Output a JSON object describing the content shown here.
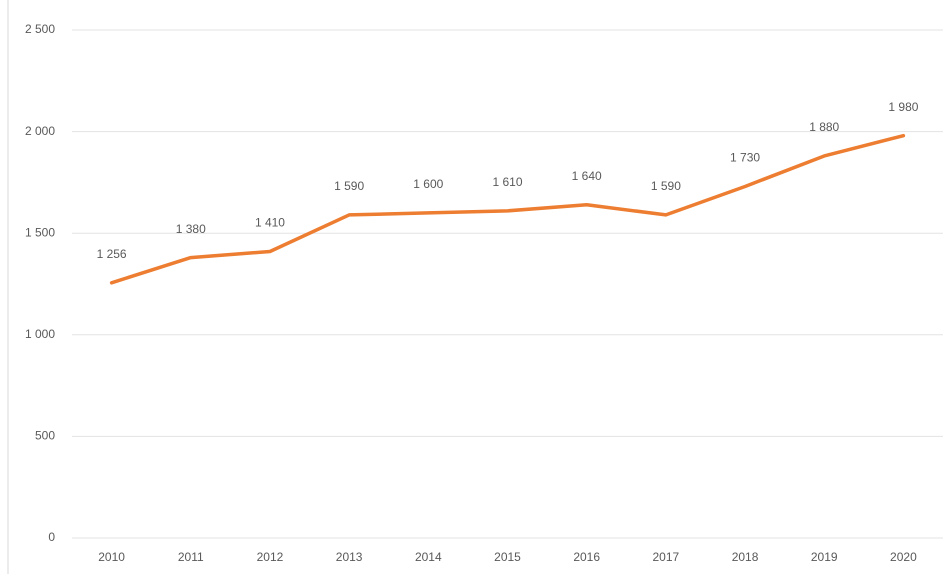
{
  "chart_data": {
    "type": "line",
    "categories": [
      "2010",
      "2011",
      "2012",
      "2013",
      "2014",
      "2015",
      "2016",
      "2017",
      "2018",
      "2019",
      "2020"
    ],
    "series": [
      {
        "color": "#ed7d31",
        "values": [
          1256,
          1380,
          1410,
          1590,
          1600,
          1610,
          1640,
          1590,
          1730,
          1880,
          1980
        ],
        "value_labels": [
          "1 256",
          "1 380",
          "1 410",
          "1 590",
          "1 600",
          "1 610",
          "1 640",
          "1 590",
          "1 730",
          "1 880",
          "1 980"
        ]
      }
    ],
    "ylim": [
      0,
      2500
    ],
    "yticks": [
      0,
      500,
      {
        "value": 1000,
        "label": "1 000"
      },
      {
        "value": 1500,
        "label": "1 500"
      },
      {
        "value": 2000,
        "label": "2 000"
      },
      {
        "value": 2500,
        "label": "2 500"
      }
    ],
    "grid": true
  }
}
